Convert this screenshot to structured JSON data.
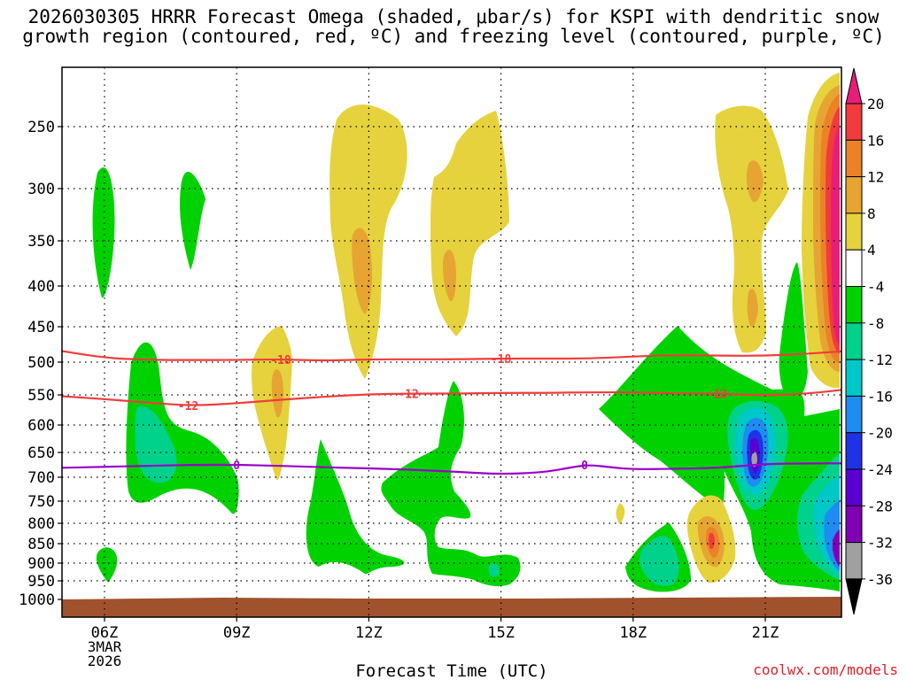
{
  "chart_data": {
    "type": "heatmap",
    "title_line1": "2026030305 HRRR Forecast Omega (shaded, μbar/s) for KSPI with dendritic snow",
    "title_line2": "growth region (contoured, red, ºC) and freezing level (contoured, purple, ºC)",
    "xlabel": "Forecast Time (UTC)",
    "ylabel": "",
    "credit": "coolwx.com/models",
    "x_ticks": [
      {
        "hour": 6,
        "label": "06Z"
      },
      {
        "hour": 9,
        "label": "09Z"
      },
      {
        "hour": 12,
        "label": "12Z"
      },
      {
        "hour": 15,
        "label": "15Z"
      },
      {
        "hour": 18,
        "label": "18Z"
      },
      {
        "hour": 21,
        "label": "21Z"
      }
    ],
    "x_sublabel": [
      "3MAR",
      "2026"
    ],
    "xlim": [
      5,
      22.9
    ],
    "y_ticks": [
      250,
      300,
      350,
      400,
      450,
      500,
      550,
      600,
      650,
      700,
      750,
      800,
      850,
      900,
      950,
      1000
    ],
    "ylim_hPa": [
      200,
      1020
    ],
    "colorbar": {
      "levels": [
        -36,
        -32,
        -28,
        -24,
        -20,
        -16,
        -12,
        -8,
        -4,
        4,
        8,
        12,
        16,
        20
      ],
      "bins": [
        {
          "range": "<-36",
          "color": "#000000"
        },
        {
          "range": "-36..-32",
          "color": "#a0a0a0"
        },
        {
          "range": "-32..-28",
          "color": "#8000b4"
        },
        {
          "range": "-28..-24",
          "color": "#5a00d2"
        },
        {
          "range": "-24..-20",
          "color": "#1e32e6"
        },
        {
          "range": "-20..-16",
          "color": "#1e8cf0"
        },
        {
          "range": "-16..-12",
          "color": "#00c8c8"
        },
        {
          "range": "-12..-8",
          "color": "#00d28c"
        },
        {
          "range": "-8..-4",
          "color": "#00d200"
        },
        {
          "range": "-4..4",
          "color": "#ffffff"
        },
        {
          "range": "4..8",
          "color": "#e6d23c"
        },
        {
          "range": "8..12",
          "color": "#e6a532"
        },
        {
          "range": "12..16",
          "color": "#eb8228"
        },
        {
          "range": "16..20",
          "color": "#f03c3c"
        },
        {
          "range": ">20",
          "color": "#e61e78"
        }
      ]
    },
    "contours": [
      {
        "name": "-18C isotherm",
        "label": "-18",
        "color": "#f03c3c",
        "points": [
          [
            5.0,
            484
          ],
          [
            6.0,
            494
          ],
          [
            7.0,
            497
          ],
          [
            8.0,
            497
          ],
          [
            9.0,
            497
          ],
          [
            10.0,
            496
          ],
          [
            11.0,
            498
          ],
          [
            12.0,
            496
          ],
          [
            13.0,
            496
          ],
          [
            14.0,
            496
          ],
          [
            15.0,
            495
          ],
          [
            16.0,
            495
          ],
          [
            17.0,
            495
          ],
          [
            18.0,
            492
          ],
          [
            19.0,
            490
          ],
          [
            20.0,
            491
          ],
          [
            21.0,
            491
          ],
          [
            22.0,
            488
          ],
          [
            22.9,
            484
          ]
        ],
        "label_at": [
          [
            10.0,
            496
          ],
          [
            15.0,
            495
          ]
        ]
      },
      {
        "name": "-12C isotherm",
        "label": "-12",
        "color": "#f03c3c",
        "points": [
          [
            5.0,
            552
          ],
          [
            6.0,
            557
          ],
          [
            7.0,
            563
          ],
          [
            8.0,
            568
          ],
          [
            9.0,
            564
          ],
          [
            10.0,
            558
          ],
          [
            11.0,
            553
          ],
          [
            12.0,
            549
          ],
          [
            13.0,
            548
          ],
          [
            14.0,
            548
          ],
          [
            15.0,
            547
          ],
          [
            16.0,
            547
          ],
          [
            17.0,
            546
          ],
          [
            18.0,
            546
          ],
          [
            19.0,
            548
          ],
          [
            20.0,
            548
          ],
          [
            21.0,
            551
          ],
          [
            22.0,
            548
          ],
          [
            22.9,
            541
          ]
        ],
        "label_at": [
          [
            7.9,
            568
          ],
          [
            12.9,
            548
          ],
          [
            19.9,
            548
          ]
        ]
      },
      {
        "name": "0C freezing level",
        "label": "0",
        "color": "#9b00c8",
        "points": [
          [
            5.0,
            681
          ],
          [
            6.0,
            679
          ],
          [
            7.0,
            677
          ],
          [
            8.0,
            675
          ],
          [
            9.0,
            675
          ],
          [
            10.0,
            677
          ],
          [
            11.0,
            680
          ],
          [
            12.0,
            682
          ],
          [
            13.0,
            685
          ],
          [
            14.0,
            689
          ],
          [
            15.0,
            694
          ],
          [
            16.0,
            690
          ],
          [
            16.6,
            680
          ],
          [
            17.0,
            675
          ],
          [
            17.5,
            680
          ],
          [
            18.0,
            684
          ],
          [
            19.0,
            683
          ],
          [
            20.0,
            681
          ],
          [
            21.0,
            673
          ],
          [
            22.0,
            672
          ],
          [
            22.9,
            672
          ]
        ],
        "label_at": [
          [
            9.0,
            675
          ],
          [
            16.9,
            675
          ]
        ]
      }
    ]
  }
}
